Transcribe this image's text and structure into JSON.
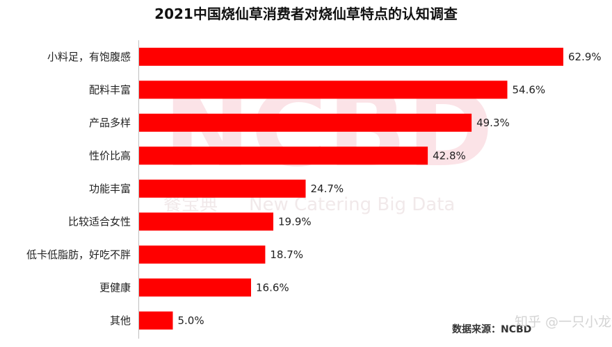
{
  "chart_data": {
    "type": "bar",
    "orientation": "horizontal",
    "title": "2021中国烧仙草消费者对烧仙草特点的认知调查",
    "categories": [
      "小料足，有饱腹感",
      "配料丰富",
      "产品多样",
      "性价比高",
      "功能丰富",
      "比较适合女性",
      "低卡低脂肪，好吃不胖",
      "更健康",
      "其他"
    ],
    "values": [
      62.9,
      54.6,
      49.3,
      42.8,
      24.7,
      19.9,
      18.7,
      16.6,
      5.0
    ],
    "value_labels": [
      "62.9%",
      "54.6%",
      "49.3%",
      "42.8%",
      "24.7%",
      "19.9%",
      "18.7%",
      "16.6%",
      "5.0%"
    ],
    "unit": "%",
    "xlim": [
      0,
      70
    ],
    "bar_color": "#ff0000",
    "grid": false,
    "legend": "none"
  },
  "watermark": {
    "main": "NCBD",
    "sub_cn": "餐宝典",
    "sub_en": "New Catering Big Data",
    "color": "#fbe3e7"
  },
  "source": "数据来源：NCBD",
  "credit": "知乎 @一只小龙侠"
}
